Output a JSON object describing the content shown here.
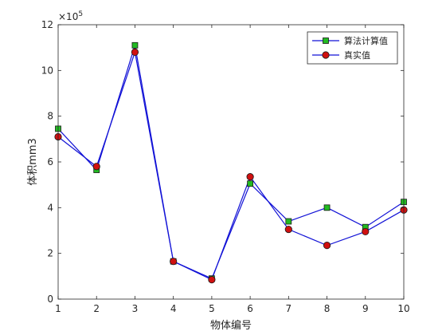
{
  "chart_data": {
    "type": "line",
    "title": "",
    "xlabel": "物体编号",
    "ylabel": "体积mm3",
    "y_exponent_label": "×10",
    "y_exponent_power": "5",
    "x": [
      1,
      2,
      3,
      4,
      5,
      6,
      7,
      8,
      9,
      10
    ],
    "xlim": [
      1,
      10
    ],
    "ylim": [
      0,
      12
    ],
    "xticks": [
      1,
      2,
      3,
      4,
      5,
      6,
      7,
      8,
      9,
      10
    ],
    "yticks": [
      0,
      2,
      4,
      6,
      8,
      10,
      12
    ],
    "grid": false,
    "legend_position": "top-right",
    "line_color": "#1212d6",
    "series": [
      {
        "name": "算法计算值",
        "marker": "square",
        "marker_color": "#22bb22",
        "values": [
          7.45,
          5.65,
          11.1,
          1.65,
          0.9,
          5.05,
          3.4,
          4.0,
          3.15,
          4.25
        ]
      },
      {
        "name": "真实值",
        "marker": "circle",
        "marker_color": "#d01010",
        "values": [
          7.1,
          5.8,
          10.8,
          1.65,
          0.85,
          5.35,
          3.05,
          2.35,
          2.95,
          3.9
        ]
      }
    ]
  }
}
